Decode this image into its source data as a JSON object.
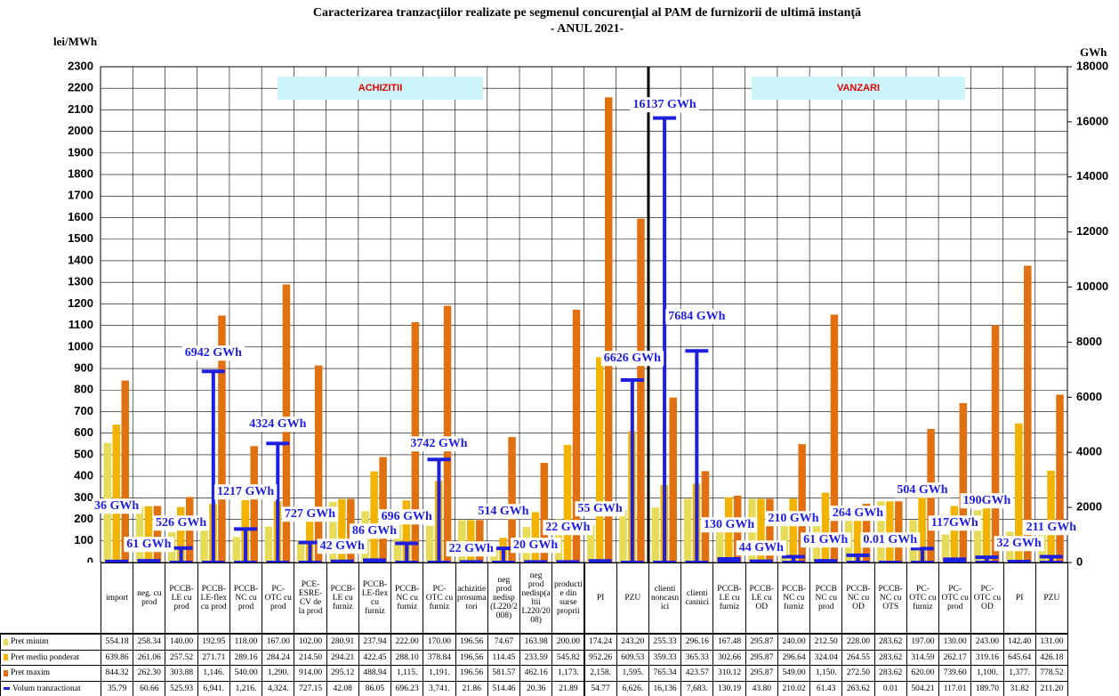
{
  "chart_data": {
    "type": "bar",
    "title": "Caracterizarea tranzacţiilor realizate pe segmenul concurenţial al PAM de furnizorii de ultimă instanţă",
    "subtitle": "- ANUL 2021-",
    "y_label": "lei/MWh",
    "y2_label": "GWh",
    "section_labels": [
      "ACHIZITII",
      "VANZARI"
    ],
    "categories": [
      "import",
      "neg. cu prod",
      "PCCB-LE cu prod",
      "PCCB-LE-flex cu prod",
      "PCCB-NC cu prod",
      "PC-OTC cu prod",
      "PCE-ESRE-CV de la prod",
      "PCCB-LE cu furniz",
      "PCCB-LE-flex cu furniz",
      "PCCB-NC cu furniz",
      "PC-OTC cu furniz",
      "achizitie prosumatori",
      "neg prod nedisp (L220/2008)",
      "neg prod nedisp(altii L220/2008)",
      "productie din surse proprii",
      "PI",
      "PZU",
      "clienti noncasnici",
      "clienti casnici",
      "PCCB-LE cu furniz",
      "PCCB-LE cu OD",
      "PCCB-NC cu furniz",
      "PCCB NC cu prod",
      "PCCB-NC cu OD",
      "PCCB-NC cu OTS",
      "PC-OTC cu furniz",
      "PC-OTC cu prod",
      "PC-OTC cu OD",
      "PI",
      "PZU"
    ],
    "series": [
      {
        "name": "Pret minim",
        "color": "#e6dc5a",
        "values": [
          554.18,
          258.34,
          140,
          192.95,
          118,
          167,
          102,
          280.91,
          237.94,
          222,
          170,
          196.56,
          74.67,
          163.98,
          200,
          174.24,
          243.2,
          255.33,
          296.16,
          167.48,
          295.87,
          240,
          212.5,
          228,
          283.62,
          197,
          130,
          243,
          142.4,
          131
        ],
        "value_labels": [
          "554.18",
          "258.34",
          "140.00",
          "192.95",
          "118.00",
          "167.00",
          "102.00",
          "280.91",
          "237.94",
          "222.00",
          "170.00",
          "196.56",
          "74.67",
          "163.98",
          "200.00",
          "174.24",
          "243.20",
          "255.33",
          "296.16",
          "167.48",
          "295.87",
          "240.00",
          "212.50",
          "228.00",
          "283.62",
          "197.00",
          "130.00",
          "243.00",
          "142.40",
          "131.00"
        ]
      },
      {
        "name": "Pret mediu ponderat",
        "color": "#f2b400",
        "values": [
          639.86,
          261.06,
          257.52,
          271.71,
          289.16,
          284.24,
          214.5,
          294.21,
          422.45,
          288.1,
          378.84,
          196.56,
          114.45,
          233.59,
          545.82,
          952.26,
          609.53,
          359.33,
          365.33,
          302.66,
          295.87,
          296.64,
          324.04,
          264.55,
          283.62,
          314.59,
          262.17,
          319.16,
          645.64,
          426.18
        ],
        "value_labels": [
          "639.86",
          "261.06",
          "257.52",
          "271.71",
          "289.16",
          "284.24",
          "214.50",
          "294.21",
          "422.45",
          "288.10",
          "378.84",
          "196.56",
          "114.45",
          "233.59",
          "545.82",
          "952.26",
          "609.53",
          "359.33",
          "365.33",
          "302.66",
          "295.87",
          "296.64",
          "324.04",
          "264.55",
          "283.62",
          "314.59",
          "262.17",
          "319.16",
          "645.64",
          "426.18"
        ]
      },
      {
        "name": "Pret maxim",
        "color": "#e07010",
        "values": [
          844.32,
          262.3,
          303.88,
          1146,
          540,
          1290,
          914,
          295.12,
          488.94,
          1115,
          1191,
          196.56,
          581.57,
          462.16,
          1173,
          2158,
          1595,
          765.34,
          423.57,
          310.12,
          295.87,
          549,
          1150,
          272.5,
          283.62,
          620,
          739.6,
          1100,
          1377,
          778.52
        ],
        "value_labels": [
          "844.32",
          "262.30",
          "303.88",
          "1,146.",
          "540.00",
          "1,290.",
          "914.00",
          "295.12",
          "488.94",
          "1,115.",
          "1,191.",
          "196.56",
          "581.57",
          "462.16",
          "1,173.",
          "2,158.",
          "1,595.",
          "765.34",
          "423.57",
          "310.12",
          "295.87",
          "549.00",
          "1,150.",
          "272.50",
          "283.62",
          "620.00",
          "739.60",
          "1,100.",
          "1,377.",
          "778.52"
        ]
      },
      {
        "name": "Volum tranzactionat",
        "color": "#1f1fe0",
        "axis": "y2",
        "values": [
          35.79,
          60.66,
          525.93,
          6941,
          1216,
          4324,
          727.15,
          42.08,
          86.05,
          696.23,
          3741,
          21.86,
          514.46,
          20.36,
          21.89,
          54.77,
          6626,
          16136,
          7683,
          130.19,
          43.8,
          210.02,
          61.43,
          263.62,
          0.01,
          504.21,
          117.01,
          189.7,
          31.82,
          211.2
        ],
        "value_labels": [
          "35.79",
          "60.66",
          "525.93",
          "6,941.",
          "1,216.",
          "4,324.",
          "727.15",
          "42.08",
          "86.05",
          "696.23",
          "3,741.",
          "21.86",
          "514.46",
          "20.36",
          "21.89",
          "54.77",
          "6,626.",
          "16,136",
          "7,683.",
          "130.19",
          "43.80",
          "210.02",
          "61.43",
          "263.62",
          "0.01",
          "504.21",
          "117.01",
          "189.70",
          "31.82",
          "211.20"
        ]
      }
    ],
    "annotations": [
      "36 GWh",
      "61 GWh",
      "526 GWh",
      "6942 GWh",
      "1217 GWh",
      "4324 GWh",
      "727 GWh",
      "42 GWh",
      "86 GWh",
      "696 GWh",
      "3742 GWh",
      "22 GWh",
      "514 GWh",
      "20 GWh",
      "22 GWh",
      "55 GWh",
      "6626 GWh",
      "16137 GWh",
      "7684 GWh",
      "130 GWh",
      "44 GWh",
      "210 GWh",
      "61 GWh",
      "264 GWh",
      "0.01 GWh",
      "504 GWh",
      "117GWh",
      "190GWh",
      "32 GWh",
      "211 GWh"
    ],
    "ylim": [
      0,
      2300
    ],
    "yticks": [
      0,
      100,
      200,
      300,
      400,
      500,
      600,
      700,
      800,
      900,
      1000,
      1100,
      1200,
      1300,
      1400,
      1500,
      1600,
      1700,
      1800,
      1900,
      2000,
      2100,
      2200,
      2300
    ],
    "y2lim": [
      0,
      18000
    ],
    "y2ticks": [
      0,
      2000,
      4000,
      6000,
      8000,
      10000,
      12000,
      14000,
      16000,
      18000
    ],
    "grid": true
  }
}
